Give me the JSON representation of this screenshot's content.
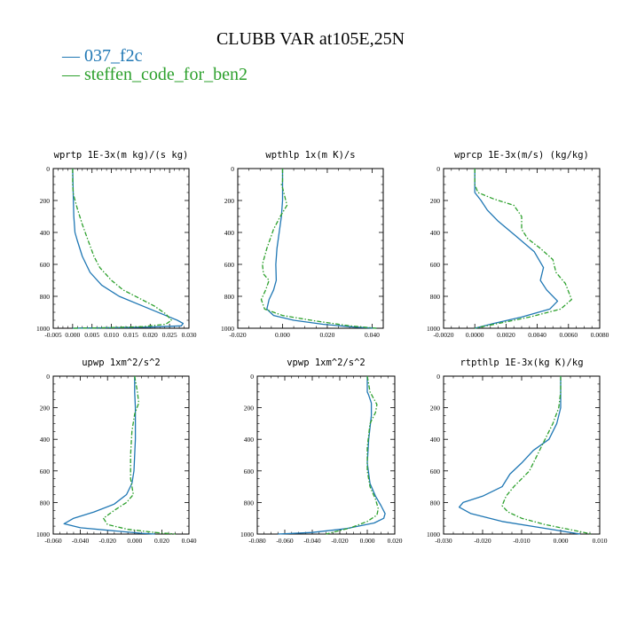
{
  "figure": {
    "title": "CLUBB VAR at105E,25N",
    "legend": [
      {
        "label": "— 037_f2c",
        "color": "#1f77b4"
      },
      {
        "label": "— steffen_code_for_ben2",
        "color": "#2ca02c"
      }
    ]
  },
  "chart_data": [
    {
      "type": "line",
      "title": "wprtp  1E-3x(m kg)/(s kg)",
      "xlim": [
        -0.005,
        0.03
      ],
      "ylim": [
        1000,
        0
      ],
      "xticks": [
        -0.005,
        0.0,
        0.005,
        0.01,
        0.015,
        0.02,
        0.025,
        0.03
      ],
      "xtick_labels": [
        "-0.005",
        "0.000",
        "0.005",
        "0.010",
        "0.015",
        "0.020",
        "0.025",
        "0.030"
      ],
      "yticks": [
        0,
        200,
        400,
        600,
        800,
        1000
      ],
      "ytick_labels": [
        "0",
        "200",
        "400",
        "600",
        "800",
        "1000"
      ],
      "series": [
        {
          "name": "037_f2c",
          "color": "#1f77b4",
          "dash": "solid",
          "x": [
            0.0,
            0.0001,
            0.0002,
            0.0003,
            0.0006,
            0.0012,
            0.0025,
            0.0045,
            0.0075,
            0.012,
            0.018,
            0.023,
            0.027,
            0.0285,
            0.028,
            0.02,
            0.008,
            0.002,
            0.0
          ],
          "y": [
            0,
            100,
            200,
            300,
            400,
            450,
            550,
            650,
            730,
            800,
            860,
            910,
            950,
            970,
            985,
            993,
            997,
            999,
            1000
          ]
        },
        {
          "name": "steffen_code_for_ben2",
          "color": "#2ca02c",
          "dash": "dashdot",
          "x": [
            0.0,
            0.0,
            0.0002,
            0.0012,
            0.0025,
            0.004,
            0.0055,
            0.007,
            0.01,
            0.013,
            0.017,
            0.021,
            0.024,
            0.0255,
            0.024,
            0.018,
            0.008,
            0.0
          ],
          "y": [
            0,
            100,
            160,
            250,
            350,
            450,
            550,
            620,
            700,
            760,
            810,
            860,
            910,
            950,
            975,
            990,
            997,
            1000
          ]
        }
      ]
    },
    {
      "type": "line",
      "title": "wpthlp  1x(m K)/s",
      "xlim": [
        -0.02,
        0.045
      ],
      "ylim": [
        1000,
        0
      ],
      "xticks": [
        -0.02,
        0.0,
        0.02,
        0.04
      ],
      "xtick_labels": [
        "-0.020",
        "0.000",
        "0.020",
        "0.040"
      ],
      "yticks": [
        0,
        200,
        400,
        600,
        800,
        1000
      ],
      "ytick_labels": [
        "0",
        "200",
        "400",
        "600",
        "800",
        "1000"
      ],
      "series": [
        {
          "name": "037_f2c",
          "color": "#1f77b4",
          "dash": "solid",
          "x": [
            0.0,
            0.0,
            0.0,
            -0.0005,
            -0.0015,
            -0.0025,
            -0.003,
            -0.0028,
            -0.004,
            -0.006,
            -0.007,
            -0.004,
            0.005,
            0.018,
            0.032,
            0.042
          ],
          "y": [
            0,
            100,
            200,
            300,
            400,
            500,
            600,
            700,
            760,
            820,
            880,
            920,
            950,
            975,
            993,
            1000
          ]
        },
        {
          "name": "steffen_code_for_ben2",
          "color": "#2ca02c",
          "dash": "dashdot",
          "x": [
            0.0,
            0.0,
            -0.0005,
            0.0,
            0.002,
            -0.001,
            -0.004,
            -0.007,
            -0.009,
            -0.0085,
            -0.006,
            -0.0075,
            -0.0095,
            -0.008,
            0.0,
            0.015,
            0.03,
            0.042
          ],
          "y": [
            0,
            80,
            100,
            120,
            230,
            300,
            380,
            500,
            600,
            660,
            700,
            760,
            820,
            880,
            920,
            955,
            985,
            1000
          ]
        }
      ]
    },
    {
      "type": "line",
      "title": "wprcp  1E-3x(m/s) (kg/kg)",
      "xlim": [
        -0.002,
        0.008
      ],
      "ylim": [
        1000,
        0
      ],
      "xticks": [
        -0.002,
        0.0,
        0.002,
        0.004,
        0.006,
        0.008
      ],
      "xtick_labels": [
        "-0.0020",
        "0.0000",
        "0.0020",
        "0.0040",
        "0.0060",
        "0.0080"
      ],
      "yticks": [
        0,
        200,
        400,
        600,
        800,
        1000
      ],
      "ytick_labels": [
        "0",
        "200",
        "400",
        "600",
        "800",
        "1000"
      ],
      "series": [
        {
          "name": "037_f2c",
          "color": "#1f77b4",
          "dash": "solid",
          "x": [
            0.0,
            0.0,
            0.0,
            0.0004,
            0.0008,
            0.0015,
            0.0026,
            0.0038,
            0.0044,
            0.0042,
            0.0046,
            0.0053,
            0.0048,
            0.003,
            0.0012,
            0.0
          ],
          "y": [
            0,
            100,
            150,
            200,
            260,
            330,
            420,
            520,
            620,
            700,
            760,
            830,
            880,
            930,
            970,
            1000
          ]
        },
        {
          "name": "steffen_code_for_ben2",
          "color": "#2ca02c",
          "dash": "dashdot",
          "x": [
            0.0,
            0.0,
            0.0002,
            0.0012,
            0.0025,
            0.003,
            0.003,
            0.0034,
            0.0042,
            0.005,
            0.0052,
            0.0058,
            0.0062,
            0.0055,
            0.0035,
            0.0015,
            0.0
          ],
          "y": [
            0,
            100,
            150,
            190,
            230,
            300,
            380,
            440,
            500,
            570,
            650,
            720,
            820,
            880,
            930,
            970,
            1000
          ]
        }
      ]
    },
    {
      "type": "line",
      "title": "upwp  1xm^2/s^2",
      "xlim": [
        -0.06,
        0.04
      ],
      "ylim": [
        1000,
        0
      ],
      "xticks": [
        -0.06,
        -0.04,
        -0.02,
        0.0,
        0.02,
        0.04
      ],
      "xtick_labels": [
        "-0.060",
        "-0.040",
        "-0.020",
        "0.000",
        "0.020",
        "0.040"
      ],
      "yticks": [
        0,
        200,
        400,
        600,
        800,
        1000
      ],
      "ytick_labels": [
        "0",
        "200",
        "400",
        "600",
        "800",
        "1000"
      ],
      "series": [
        {
          "name": "037_f2c",
          "color": "#1f77b4",
          "dash": "solid",
          "x": [
            0.0,
            0.0,
            0.0005,
            0.0005,
            0.0,
            -0.0005,
            -0.002,
            -0.006,
            -0.015,
            -0.03,
            -0.045,
            -0.052,
            -0.04,
            -0.015,
            0.005,
            0.015
          ],
          "y": [
            0,
            100,
            200,
            400,
            500,
            600,
            680,
            750,
            810,
            860,
            900,
            935,
            960,
            980,
            995,
            1000
          ]
        },
        {
          "name": "steffen_code_for_ben2",
          "color": "#2ca02c",
          "dash": "dashdot",
          "x": [
            0.0,
            0.002,
            0.003,
            0.0,
            -0.002,
            -0.003,
            -0.003,
            -0.001,
            -0.006,
            -0.015,
            -0.023,
            -0.02,
            -0.005,
            0.015,
            0.03
          ],
          "y": [
            0,
            100,
            170,
            240,
            350,
            500,
            650,
            750,
            800,
            850,
            900,
            940,
            970,
            990,
            1000
          ]
        }
      ]
    },
    {
      "type": "line",
      "title": "vpwp  1xm^2/s^2",
      "xlim": [
        -0.08,
        0.02
      ],
      "ylim": [
        1000,
        0
      ],
      "xticks": [
        -0.08,
        -0.06,
        -0.04,
        -0.02,
        0.0,
        0.02
      ],
      "xtick_labels": [
        "-0.080",
        "-0.060",
        "-0.040",
        "-0.020",
        "0.000",
        "0.020"
      ],
      "yticks": [
        0,
        200,
        400,
        600,
        800,
        1000
      ],
      "ytick_labels": [
        "0",
        "200",
        "400",
        "600",
        "800",
        "1000"
      ],
      "series": [
        {
          "name": "037_f2c",
          "color": "#1f77b4",
          "dash": "solid",
          "x": [
            0.0,
            0.0,
            0.001,
            0.003,
            0.003,
            0.001,
            0.0,
            0.002,
            0.006,
            0.01,
            0.013,
            0.012,
            0.005,
            -0.015,
            -0.04,
            -0.065
          ],
          "y": [
            0,
            100,
            120,
            170,
            250,
            400,
            550,
            680,
            760,
            820,
            870,
            900,
            930,
            965,
            990,
            1000
          ]
        },
        {
          "name": "steffen_code_for_ben2",
          "color": "#2ca02c",
          "dash": "dashdot",
          "x": [
            0.0,
            0.002,
            0.007,
            0.006,
            0.002,
            0.0,
            0.0,
            0.002,
            0.006,
            0.008,
            0.007,
            0.0,
            -0.012,
            -0.03
          ],
          "y": [
            0,
            100,
            180,
            230,
            300,
            450,
            600,
            700,
            780,
            840,
            880,
            920,
            960,
            1000
          ]
        }
      ]
    },
    {
      "type": "line",
      "title": "rtpthlp  1E-3x(kg K)/kg",
      "xlim": [
        -0.03,
        0.01
      ],
      "ylim": [
        1000,
        0
      ],
      "xticks": [
        -0.03,
        -0.02,
        -0.01,
        0.0,
        0.01
      ],
      "xtick_labels": [
        "-0.030",
        "-0.020",
        "-0.010",
        "0.000",
        "0.010"
      ],
      "yticks": [
        0,
        200,
        400,
        600,
        800,
        1000
      ],
      "ytick_labels": [
        "0",
        "200",
        "400",
        "600",
        "800",
        "1000"
      ],
      "series": [
        {
          "name": "037_f2c",
          "color": "#1f77b4",
          "dash": "solid",
          "x": [
            0.0,
            0.0,
            0.0,
            -0.001,
            -0.003,
            -0.007,
            -0.01,
            -0.013,
            -0.015,
            -0.02,
            -0.025,
            -0.026,
            -0.023,
            -0.015,
            -0.005,
            0.005
          ],
          "y": [
            0,
            100,
            200,
            300,
            400,
            470,
            550,
            620,
            700,
            760,
            800,
            830,
            870,
            920,
            960,
            1000
          ]
        },
        {
          "name": "steffen_code_for_ben2",
          "color": "#2ca02c",
          "dash": "dashdot",
          "x": [
            0.0,
            0.0,
            -0.0005,
            -0.002,
            -0.004,
            -0.006,
            -0.008,
            -0.01,
            -0.012,
            -0.014,
            -0.015,
            -0.0135,
            -0.01,
            -0.004,
            0.003,
            0.008
          ],
          "y": [
            0,
            100,
            200,
            300,
            400,
            500,
            600,
            650,
            700,
            760,
            820,
            860,
            900,
            940,
            975,
            1000
          ]
        }
      ]
    }
  ]
}
